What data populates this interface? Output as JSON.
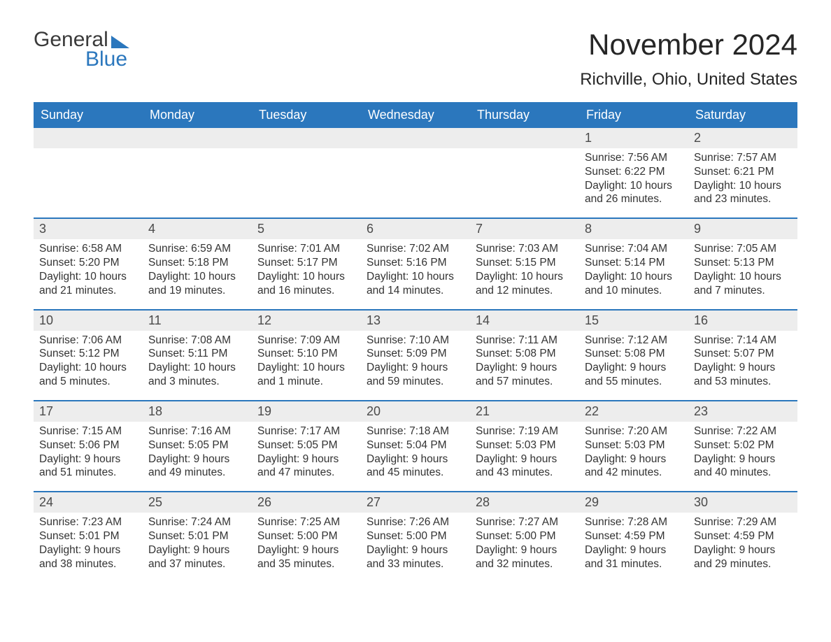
{
  "logo": {
    "word1": "General",
    "word2": "Blue"
  },
  "title": "November 2024",
  "location": "Richville, Ohio, United States",
  "colors": {
    "header_bg": "#2b77bd",
    "header_text": "#ffffff",
    "daynum_bg": "#ededed",
    "body_text": "#333333",
    "title_text": "#262626",
    "page_bg": "#ffffff",
    "week_border": "#2b77bd"
  },
  "typography": {
    "title_fontsize": 42,
    "location_fontsize": 24,
    "header_fontsize": 18,
    "daynum_fontsize": 18,
    "body_fontsize": 15.5
  },
  "day_names": [
    "Sunday",
    "Monday",
    "Tuesday",
    "Wednesday",
    "Thursday",
    "Friday",
    "Saturday"
  ],
  "weeks": [
    [
      {
        "empty": true
      },
      {
        "empty": true
      },
      {
        "empty": true
      },
      {
        "empty": true
      },
      {
        "empty": true
      },
      {
        "num": "1",
        "sunrise": "Sunrise: 7:56 AM",
        "sunset": "Sunset: 6:22 PM",
        "daylight": "Daylight: 10 hours and 26 minutes."
      },
      {
        "num": "2",
        "sunrise": "Sunrise: 7:57 AM",
        "sunset": "Sunset: 6:21 PM",
        "daylight": "Daylight: 10 hours and 23 minutes."
      }
    ],
    [
      {
        "num": "3",
        "sunrise": "Sunrise: 6:58 AM",
        "sunset": "Sunset: 5:20 PM",
        "daylight": "Daylight: 10 hours and 21 minutes."
      },
      {
        "num": "4",
        "sunrise": "Sunrise: 6:59 AM",
        "sunset": "Sunset: 5:18 PM",
        "daylight": "Daylight: 10 hours and 19 minutes."
      },
      {
        "num": "5",
        "sunrise": "Sunrise: 7:01 AM",
        "sunset": "Sunset: 5:17 PM",
        "daylight": "Daylight: 10 hours and 16 minutes."
      },
      {
        "num": "6",
        "sunrise": "Sunrise: 7:02 AM",
        "sunset": "Sunset: 5:16 PM",
        "daylight": "Daylight: 10 hours and 14 minutes."
      },
      {
        "num": "7",
        "sunrise": "Sunrise: 7:03 AM",
        "sunset": "Sunset: 5:15 PM",
        "daylight": "Daylight: 10 hours and 12 minutes."
      },
      {
        "num": "8",
        "sunrise": "Sunrise: 7:04 AM",
        "sunset": "Sunset: 5:14 PM",
        "daylight": "Daylight: 10 hours and 10 minutes."
      },
      {
        "num": "9",
        "sunrise": "Sunrise: 7:05 AM",
        "sunset": "Sunset: 5:13 PM",
        "daylight": "Daylight: 10 hours and 7 minutes."
      }
    ],
    [
      {
        "num": "10",
        "sunrise": "Sunrise: 7:06 AM",
        "sunset": "Sunset: 5:12 PM",
        "daylight": "Daylight: 10 hours and 5 minutes."
      },
      {
        "num": "11",
        "sunrise": "Sunrise: 7:08 AM",
        "sunset": "Sunset: 5:11 PM",
        "daylight": "Daylight: 10 hours and 3 minutes."
      },
      {
        "num": "12",
        "sunrise": "Sunrise: 7:09 AM",
        "sunset": "Sunset: 5:10 PM",
        "daylight": "Daylight: 10 hours and 1 minute."
      },
      {
        "num": "13",
        "sunrise": "Sunrise: 7:10 AM",
        "sunset": "Sunset: 5:09 PM",
        "daylight": "Daylight: 9 hours and 59 minutes."
      },
      {
        "num": "14",
        "sunrise": "Sunrise: 7:11 AM",
        "sunset": "Sunset: 5:08 PM",
        "daylight": "Daylight: 9 hours and 57 minutes."
      },
      {
        "num": "15",
        "sunrise": "Sunrise: 7:12 AM",
        "sunset": "Sunset: 5:08 PM",
        "daylight": "Daylight: 9 hours and 55 minutes."
      },
      {
        "num": "16",
        "sunrise": "Sunrise: 7:14 AM",
        "sunset": "Sunset: 5:07 PM",
        "daylight": "Daylight: 9 hours and 53 minutes."
      }
    ],
    [
      {
        "num": "17",
        "sunrise": "Sunrise: 7:15 AM",
        "sunset": "Sunset: 5:06 PM",
        "daylight": "Daylight: 9 hours and 51 minutes."
      },
      {
        "num": "18",
        "sunrise": "Sunrise: 7:16 AM",
        "sunset": "Sunset: 5:05 PM",
        "daylight": "Daylight: 9 hours and 49 minutes."
      },
      {
        "num": "19",
        "sunrise": "Sunrise: 7:17 AM",
        "sunset": "Sunset: 5:05 PM",
        "daylight": "Daylight: 9 hours and 47 minutes."
      },
      {
        "num": "20",
        "sunrise": "Sunrise: 7:18 AM",
        "sunset": "Sunset: 5:04 PM",
        "daylight": "Daylight: 9 hours and 45 minutes."
      },
      {
        "num": "21",
        "sunrise": "Sunrise: 7:19 AM",
        "sunset": "Sunset: 5:03 PM",
        "daylight": "Daylight: 9 hours and 43 minutes."
      },
      {
        "num": "22",
        "sunrise": "Sunrise: 7:20 AM",
        "sunset": "Sunset: 5:03 PM",
        "daylight": "Daylight: 9 hours and 42 minutes."
      },
      {
        "num": "23",
        "sunrise": "Sunrise: 7:22 AM",
        "sunset": "Sunset: 5:02 PM",
        "daylight": "Daylight: 9 hours and 40 minutes."
      }
    ],
    [
      {
        "num": "24",
        "sunrise": "Sunrise: 7:23 AM",
        "sunset": "Sunset: 5:01 PM",
        "daylight": "Daylight: 9 hours and 38 minutes."
      },
      {
        "num": "25",
        "sunrise": "Sunrise: 7:24 AM",
        "sunset": "Sunset: 5:01 PM",
        "daylight": "Daylight: 9 hours and 37 minutes."
      },
      {
        "num": "26",
        "sunrise": "Sunrise: 7:25 AM",
        "sunset": "Sunset: 5:00 PM",
        "daylight": "Daylight: 9 hours and 35 minutes."
      },
      {
        "num": "27",
        "sunrise": "Sunrise: 7:26 AM",
        "sunset": "Sunset: 5:00 PM",
        "daylight": "Daylight: 9 hours and 33 minutes."
      },
      {
        "num": "28",
        "sunrise": "Sunrise: 7:27 AM",
        "sunset": "Sunset: 5:00 PM",
        "daylight": "Daylight: 9 hours and 32 minutes."
      },
      {
        "num": "29",
        "sunrise": "Sunrise: 7:28 AM",
        "sunset": "Sunset: 4:59 PM",
        "daylight": "Daylight: 9 hours and 31 minutes."
      },
      {
        "num": "30",
        "sunrise": "Sunrise: 7:29 AM",
        "sunset": "Sunset: 4:59 PM",
        "daylight": "Daylight: 9 hours and 29 minutes."
      }
    ]
  ]
}
